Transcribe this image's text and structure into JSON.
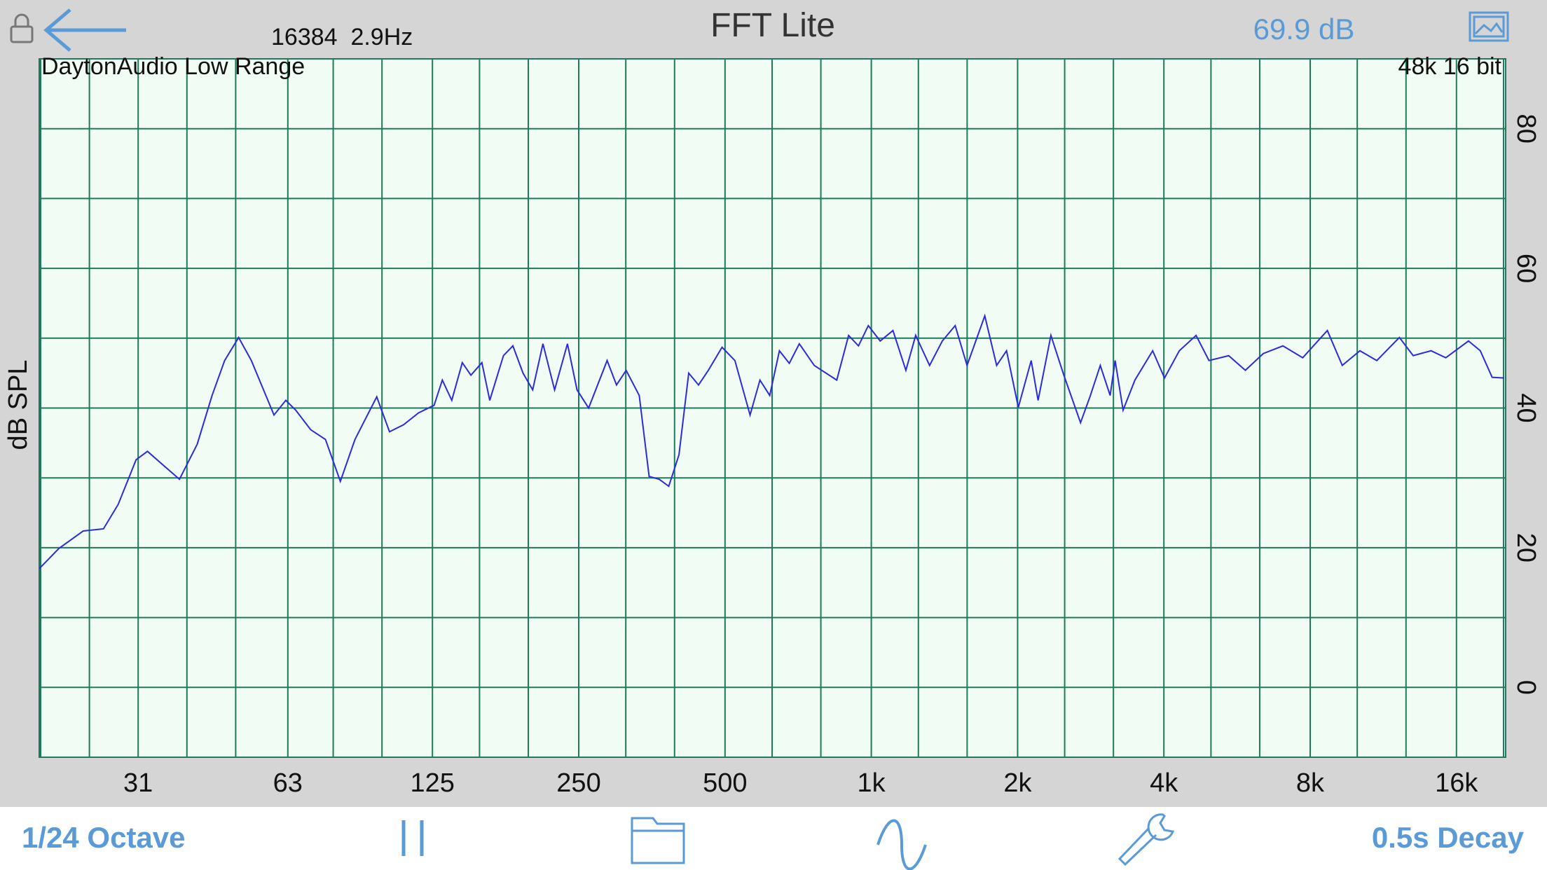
{
  "header": {
    "info": "16384  2.9Hz",
    "title": "FFT Lite",
    "level": "69.9 dB"
  },
  "chart_data": {
    "type": "line",
    "subtitle": "DaytonAudio Low Range",
    "annotation": "48k 16 bit",
    "y_label": "dB SPL",
    "x_scale": "log",
    "x": [
      19.4,
      21.3,
      23.9,
      26.3,
      28.2,
      30.7,
      32.4,
      34.8,
      37.7,
      41.0,
      44.0,
      46.7,
      49.9,
      53.0,
      59.0,
      62.4,
      65.4,
      70.2,
      75.3,
      80.8,
      86.6,
      96.0,
      102,
      109,
      117,
      126,
      131,
      137,
      144,
      150,
      158,
      164,
      175,
      183,
      192,
      201,
      211,
      223,
      237,
      248,
      262,
      286,
      299,
      313,
      333,
      349,
      366,
      383,
      402,
      421,
      441,
      462,
      493,
      524,
      563,
      590,
      618,
      647,
      678,
      711,
      763,
      849,
      898,
      941,
      986,
      1043,
      1108,
      1178,
      1234,
      1318,
      1400,
      1488,
      1574,
      1712,
      1811,
      1898,
      2007,
      2133,
      2204,
      2342,
      2490,
      2695,
      2824,
      2959,
      3101,
      3175,
      3297,
      3487,
      3793,
      4012,
      4303,
      4659,
      4953,
      5438,
      5884,
      6406,
      7031,
      7722,
      8678,
      9313,
      10125,
      10969,
      12209,
      13034,
      14181,
      15209,
      16938,
      17913,
      18947,
      20041
    ],
    "series": [
      {
        "color": "#2b2bd9",
        "values": [
          17,
          19.9,
          22.4,
          22.7,
          26.2,
          32.6,
          33.8,
          31.9,
          29.8,
          34.8,
          41.8,
          46.8,
          50.1,
          46.8,
          39,
          41.1,
          39.7,
          36.9,
          35.5,
          29.5,
          35.5,
          41.6,
          36.6,
          37.6,
          39.3,
          40.4,
          44,
          41.1,
          46.5,
          44.7,
          46.5,
          41.1,
          47.5,
          48.9,
          45,
          42.6,
          49.2,
          42.6,
          49.2,
          42.6,
          40,
          46.8,
          43.3,
          45.4,
          41.8,
          30.2,
          29.8,
          28.8,
          33.3,
          45,
          43.3,
          45.4,
          48.7,
          46.8,
          39,
          44,
          41.8,
          48.2,
          46.4,
          49.2,
          46.1,
          44,
          50.4,
          48.9,
          51.8,
          49.6,
          51.1,
          45.4,
          50.4,
          46.1,
          49.6,
          51.8,
          46.1,
          53.2,
          46.1,
          48.2,
          40.1,
          46.8,
          41.1,
          50.4,
          44.7,
          37.9,
          41.8,
          46.1,
          41.8,
          46.8,
          39.7,
          44,
          48.2,
          44.3,
          48.2,
          50.4,
          46.8,
          47.5,
          45.4,
          47.8,
          48.9,
          47.2,
          51.1,
          46.1,
          48.2,
          46.8,
          50.1,
          47.5,
          48.2,
          47.2,
          49.6,
          48.2,
          44.4,
          44.3
        ]
      }
    ],
    "xlim": [
      19.4,
      20200
    ],
    "xticks": [
      31,
      63,
      125,
      250,
      500,
      {
        "value": 1000,
        "label": "1k"
      },
      {
        "value": 2000,
        "label": "2k"
      },
      {
        "value": 4000,
        "label": "4k"
      },
      {
        "value": 8000,
        "label": "8k"
      },
      {
        "value": 16000,
        "label": "16k"
      }
    ],
    "ylim": [
      -10,
      90
    ],
    "yticks": [
      0,
      20,
      40,
      60,
      80
    ],
    "grid": true
  },
  "toolbar": {
    "resolution": "1/24 Octave",
    "decay": "0.5s Decay"
  }
}
